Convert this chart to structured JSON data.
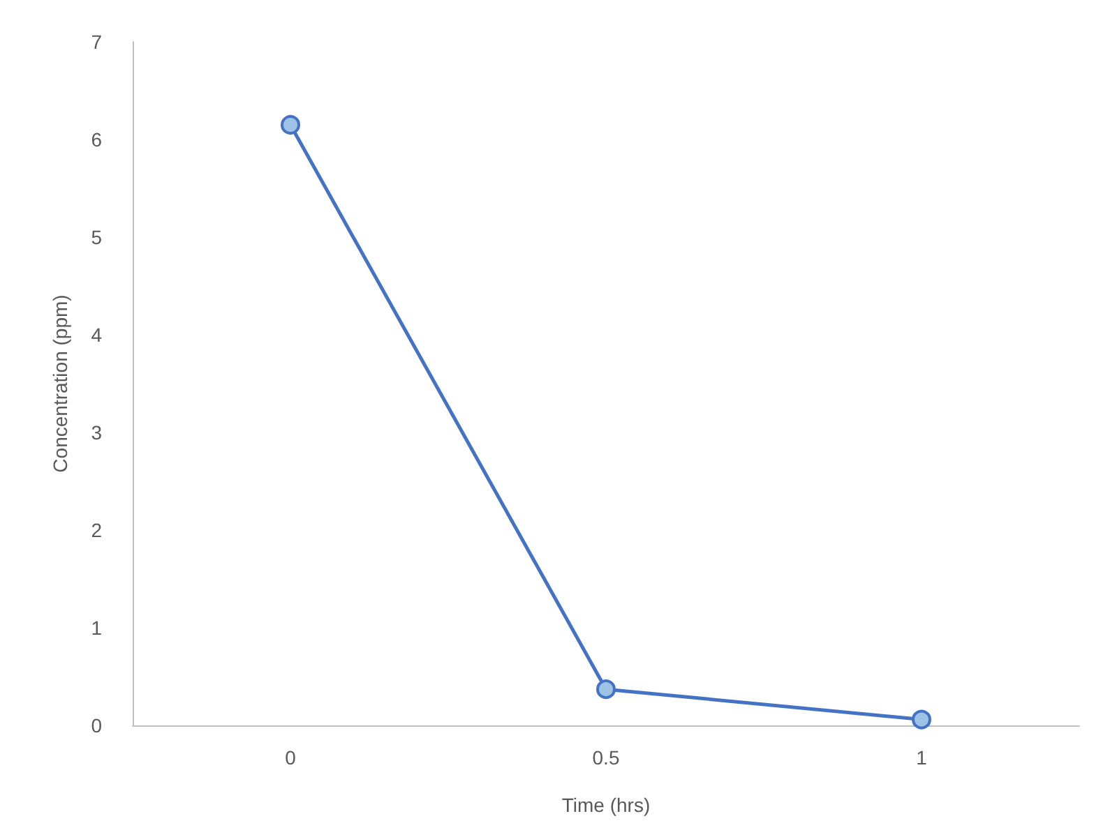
{
  "chart_data": {
    "type": "line",
    "xlabel": "Time (hrs)",
    "ylabel": "Concentration (ppm)",
    "categories": [
      "0",
      "0.5",
      "1"
    ],
    "series": [
      {
        "color": "#4472c4",
        "values": [
          6.15,
          0.37,
          0.06
        ]
      }
    ],
    "ylim": [
      0,
      7
    ],
    "yticks": [
      0,
      1,
      2,
      3,
      4,
      5,
      6,
      7
    ],
    "marker": "circle",
    "line_style": "solid"
  }
}
